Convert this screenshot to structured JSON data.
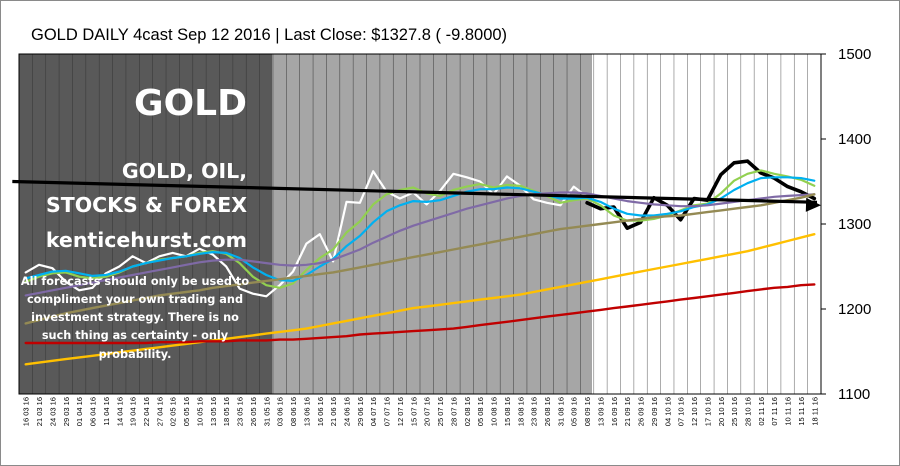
{
  "chart_data": {
    "type": "line",
    "title": "GOLD DAILY 4cast  Sep 12 2016 | Last Close: $1327.8 ( -9.8000)",
    "ylim": [
      1100,
      1500
    ],
    "y_ticks": [
      "1100",
      "1200",
      "1300",
      "1400",
      "1500"
    ],
    "grid": true,
    "x": [
      "16 03 16",
      "21 03 16",
      "24 03 16",
      "29 03 16",
      "01 04 16",
      "06 04 16",
      "11 04 16",
      "14 04 16",
      "19 04 16",
      "22 04 16",
      "27 04 16",
      "02 05 16",
      "05 05 16",
      "10 05 16",
      "13 05 16",
      "18 05 16",
      "23 05 16",
      "26 05 16",
      "31 05 16",
      "03 06 16",
      "08 06 16",
      "13 06 16",
      "16 06 16",
      "21 06 16",
      "24 06 16",
      "29 06 16",
      "04 07 16",
      "07 07 16",
      "12 07 16",
      "15 07 16",
      "20 07 16",
      "25 07 16",
      "28 07 16",
      "02 08 16",
      "05 08 16",
      "10 08 16",
      "15 08 16",
      "18 08 16",
      "23 08 16",
      "26 08 16",
      "31 08 16",
      "05 09 16",
      "08 09 16",
      "13 09 16",
      "16 09 16",
      "21 09 16",
      "26 09 16",
      "29 09 16",
      "04 10 16",
      "07 10 16",
      "12 10 16",
      "17 10 16",
      "20 10 16",
      "25 10 16",
      "28 10 16",
      "02 11 16",
      "07 11 16",
      "10 11 16",
      "15 11 16",
      "18 11 16"
    ],
    "series": [
      {
        "color": "#ffffff",
        "values": [
          1243,
          1252,
          1248,
          1232,
          1222,
          1225,
          1242,
          1250,
          1262,
          1254,
          1262,
          1266,
          1262,
          1271,
          1264,
          1250,
          1224,
          1218,
          1215,
          1228,
          1244,
          1277,
          1288,
          1256,
          1326,
          1325,
          1362,
          1338,
          1330,
          1337,
          1323,
          1339,
          1359,
          1355,
          1350,
          1335,
          1356,
          1345,
          1329,
          1325,
          1322,
          1344,
          1332,
          null,
          null,
          null,
          null,
          null,
          null,
          null,
          null,
          null,
          null,
          null,
          null,
          null,
          null,
          null,
          null,
          null
        ]
      },
      {
        "color": "#000000",
        "values": [
          null,
          null,
          null,
          null,
          null,
          null,
          null,
          null,
          null,
          null,
          null,
          null,
          null,
          null,
          null,
          null,
          null,
          null,
          null,
          null,
          null,
          null,
          null,
          null,
          null,
          null,
          null,
          null,
          null,
          null,
          null,
          null,
          null,
          null,
          null,
          null,
          null,
          null,
          null,
          null,
          null,
          null,
          1325,
          1318,
          1320,
          1295,
          1302,
          1331,
          1322,
          1305,
          1330,
          1328,
          1358,
          1372,
          1374,
          1360,
          1354,
          1344,
          1338,
          1330
        ]
      },
      {
        "color": "#92d050",
        "values": [
          1232,
          1238,
          1242,
          1243,
          1238,
          1236,
          1238,
          1243,
          1250,
          1254,
          1258,
          1260,
          1262,
          1266,
          1268,
          1265,
          1254,
          1238,
          1228,
          1225,
          1230,
          1246,
          1260,
          1270,
          1290,
          1303,
          1323,
          1335,
          1340,
          1343,
          1336,
          1333,
          1340,
          1344,
          1347,
          1343,
          1346,
          1345,
          1339,
          1333,
          1325,
          1328,
          1330,
          1322,
          1310,
          1304,
          1304,
          1306,
          1310,
          1316,
          1322,
          1324,
          1336,
          1351,
          1359,
          1363,
          1359,
          1356,
          1352,
          1345
        ]
      },
      {
        "color": "#00b0f0",
        "values": [
          1236,
          1240,
          1244,
          1245,
          1242,
          1239,
          1240,
          1244,
          1250,
          1254,
          1257,
          1260,
          1262,
          1265,
          1267,
          1266,
          1260,
          1249,
          1240,
          1234,
          1233,
          1240,
          1250,
          1259,
          1274,
          1286,
          1302,
          1315,
          1322,
          1327,
          1326,
          1328,
          1333,
          1338,
          1341,
          1341,
          1343,
          1342,
          1338,
          1334,
          1330,
          1330,
          1331,
          1326,
          1318,
          1312,
          1310,
          1310,
          1312,
          1315,
          1320,
          1323,
          1330,
          1340,
          1348,
          1354,
          1355,
          1355,
          1354,
          1351
        ]
      },
      {
        "color": "#7f6aa6",
        "values": [
          1216,
          1219,
          1222,
          1225,
          1228,
          1231,
          1234,
          1237,
          1240,
          1243,
          1246,
          1249,
          1252,
          1255,
          1257,
          1258,
          1258,
          1256,
          1254,
          1252,
          1251,
          1252,
          1254,
          1258,
          1264,
          1270,
          1278,
          1285,
          1292,
          1298,
          1303,
          1308,
          1313,
          1318,
          1322,
          1326,
          1330,
          1333,
          1335,
          1336,
          1337,
          1337,
          1336,
          1333,
          1330,
          1327,
          1325,
          1323,
          1322,
          1321,
          1321,
          1322,
          1324,
          1326,
          1328,
          1330,
          1332,
          1333,
          1334,
          1335
        ]
      },
      {
        "color": "#948a54",
        "values": [
          1183,
          1187,
          1191,
          1195,
          1198,
          1201,
          1204,
          1207,
          1210,
          1213,
          1216,
          1218,
          1220,
          1222,
          1225,
          1227,
          1229,
          1231,
          1233,
          1235,
          1237,
          1239,
          1241,
          1243,
          1246,
          1249,
          1252,
          1255,
          1258,
          1261,
          1264,
          1267,
          1270,
          1273,
          1276,
          1279,
          1282,
          1285,
          1288,
          1291,
          1294,
          1296,
          1298,
          1300,
          1302,
          1304,
          1306,
          1308,
          1309,
          1310,
          1312,
          1314,
          1316,
          1318,
          1320,
          1322,
          1325,
          1328,
          1331,
          1335
        ]
      },
      {
        "color": "#ffc000",
        "values": [
          1135,
          1137,
          1139,
          1141,
          1143,
          1145,
          1147,
          1149,
          1151,
          1153,
          1155,
          1157,
          1159,
          1161,
          1163,
          1165,
          1167,
          1169,
          1171,
          1173,
          1175,
          1177,
          1180,
          1183,
          1186,
          1189,
          1192,
          1195,
          1198,
          1201,
          1203,
          1205,
          1207,
          1209,
          1211,
          1213,
          1215,
          1217,
          1220,
          1223,
          1226,
          1229,
          1232,
          1235,
          1238,
          1241,
          1244,
          1247,
          1250,
          1253,
          1256,
          1259,
          1262,
          1265,
          1268,
          1272,
          1276,
          1280,
          1284,
          1288
        ]
      },
      {
        "color": "#c00000",
        "values": [
          1160,
          1160,
          1160,
          1160,
          1160,
          1160,
          1160,
          1160,
          1160,
          1160,
          1161,
          1161,
          1161,
          1162,
          1162,
          1162,
          1163,
          1163,
          1163,
          1164,
          1164,
          1165,
          1166,
          1167,
          1168,
          1170,
          1171,
          1172,
          1173,
          1174,
          1175,
          1176,
          1177,
          1179,
          1181,
          1183,
          1185,
          1187,
          1189,
          1191,
          1193,
          1195,
          1197,
          1199,
          1201,
          1203,
          1205,
          1207,
          1209,
          1211,
          1213,
          1215,
          1217,
          1219,
          1221,
          1223,
          1225,
          1226,
          1228,
          1229
        ]
      }
    ],
    "forecast_arrow": {
      "color": "#000000",
      "from": [
        "12 11 16",
        1350
      ],
      "to": [
        "18 11 16",
        1322
      ]
    }
  },
  "branding": {
    "symbol": "GOLD",
    "tagline_lines": [
      "GOLD, OIL,",
      "STOCKS & FOREX"
    ],
    "site": "kenticehurst.com",
    "disclaimer_lines": [
      "All forecasts should only be used to",
      "compliment your own trading and",
      "investment strategy. There is no",
      "such thing as certainty - only",
      "probability."
    ]
  }
}
